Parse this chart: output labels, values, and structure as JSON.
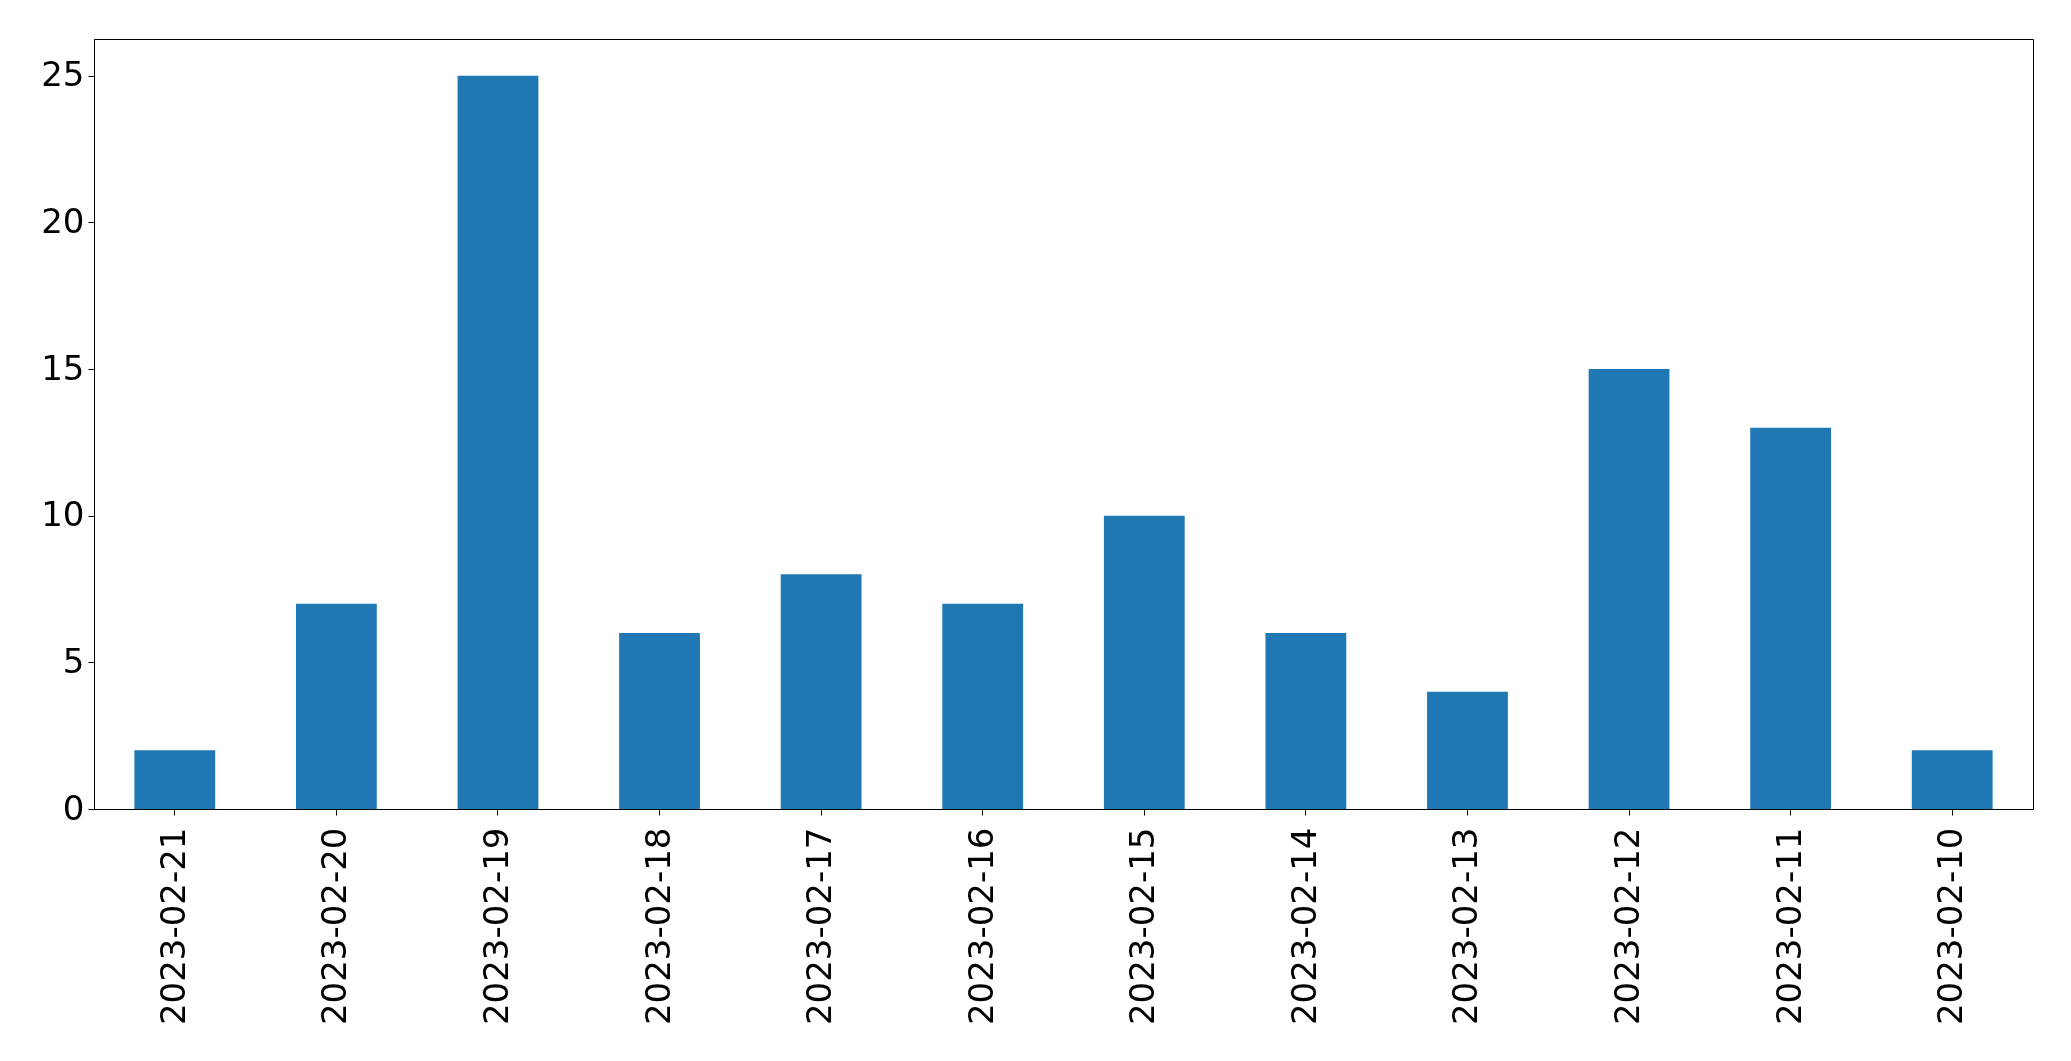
{
  "chart_data": {
    "type": "bar",
    "categories": [
      "2023-02-21",
      "2023-02-20",
      "2023-02-19",
      "2023-02-18",
      "2023-02-17",
      "2023-02-16",
      "2023-02-15",
      "2023-02-14",
      "2023-02-13",
      "2023-02-12",
      "2023-02-11",
      "2023-02-10"
    ],
    "values": [
      2,
      7,
      25,
      6,
      8,
      7,
      10,
      6,
      4,
      15,
      13,
      2
    ],
    "color": "#1f77b4",
    "ylim": [
      0,
      26.25
    ],
    "yticks": [
      0,
      5,
      10,
      15,
      20,
      25
    ]
  }
}
